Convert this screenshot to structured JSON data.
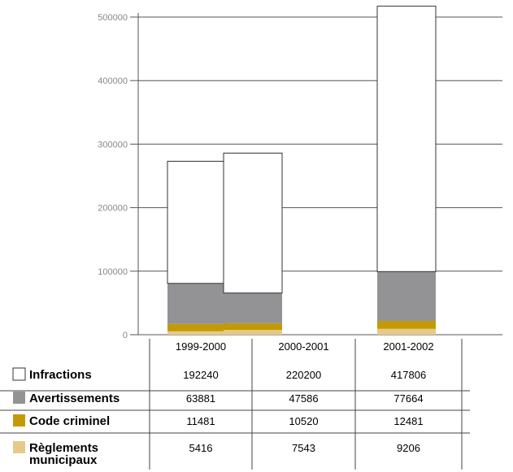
{
  "chart_data": {
    "type": "bar",
    "stacked": true,
    "categories": [
      "1999-2000",
      "2000-2001",
      "2001-2002"
    ],
    "ylim": [
      0,
      500000
    ],
    "yticks": [
      "0",
      "100000",
      "200000",
      "300000",
      "400000",
      "500000"
    ],
    "grid": true,
    "series": [
      {
        "name": "Règlements municipaux",
        "values": [
          5416,
          7543,
          9206
        ],
        "color": "#e6c98a",
        "display": [
          "5416",
          "7543",
          "9206"
        ]
      },
      {
        "name": "Code criminel",
        "values": [
          11481,
          10520,
          12481
        ],
        "color": "#c39a05",
        "display": [
          "11481",
          "10520",
          "12481"
        ]
      },
      {
        "name": "Avertissements",
        "values": [
          63881,
          47586,
          77664
        ],
        "color": "#939396",
        "display": [
          "63881",
          "47586",
          "77664"
        ]
      },
      {
        "name": "Infractions",
        "values": [
          192240,
          220200,
          417806
        ],
        "color": "#ffffff",
        "display": [
          "192240",
          "220200",
          "417806"
        ]
      }
    ],
    "table_rows": [
      {
        "label": [
          "Infractions"
        ],
        "series_index": 3
      },
      {
        "label": [
          "Avertissements"
        ],
        "series_index": 2
      },
      {
        "label": [
          "Code criminel"
        ],
        "series_index": 1
      },
      {
        "label": [
          "Règlements",
          "municipaux"
        ],
        "series_index": 0
      }
    ]
  }
}
